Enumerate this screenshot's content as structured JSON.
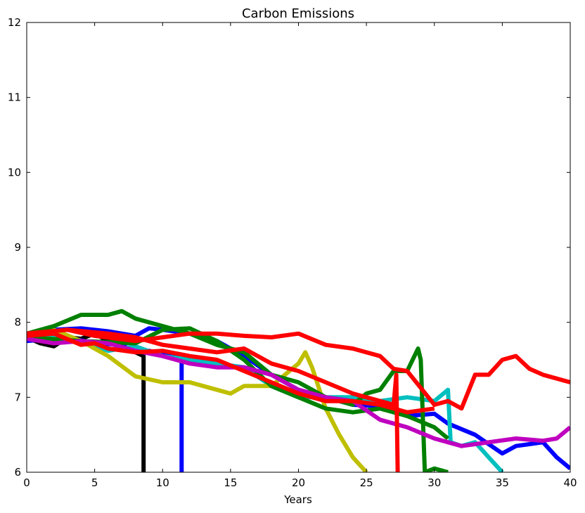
{
  "chart_data": {
    "type": "line",
    "title": "Carbon Emissions",
    "xlabel": "Years",
    "ylabel": "",
    "xlim": [
      0,
      40
    ],
    "ylim": [
      6,
      12
    ],
    "xticks": [
      "0",
      "5",
      "10",
      "15",
      "20",
      "25",
      "30",
      "35",
      "40"
    ],
    "yticks": [
      "6",
      "7",
      "8",
      "9",
      "10",
      "11",
      "12"
    ],
    "grid": false,
    "series": [
      {
        "color": "#000000",
        "x": [
          0,
          1,
          2,
          3,
          4,
          5,
          6,
          7,
          8,
          8.6,
          8.6
        ],
        "y": [
          7.8,
          7.72,
          7.68,
          7.8,
          7.78,
          7.85,
          7.75,
          7.7,
          7.6,
          7.55,
          6.0
        ]
      },
      {
        "color": "#0000ff",
        "x": [
          0,
          3,
          5,
          7,
          8,
          9,
          10,
          11,
          11.4,
          11.4
        ],
        "y": [
          7.75,
          7.8,
          7.72,
          7.7,
          7.6,
          7.62,
          7.58,
          7.55,
          7.5,
          6.0
        ]
      },
      {
        "color": "#0000ff",
        "x": [
          0,
          2,
          4,
          6,
          8,
          9,
          10,
          12,
          14,
          16,
          18,
          20,
          22,
          24,
          26,
          28,
          30,
          31,
          33,
          35,
          36,
          38,
          39,
          40
        ],
        "y": [
          7.8,
          7.9,
          7.92,
          7.88,
          7.82,
          7.92,
          7.9,
          7.85,
          7.75,
          7.55,
          7.3,
          7.1,
          7.0,
          6.9,
          6.88,
          6.75,
          6.78,
          6.65,
          6.5,
          6.25,
          6.35,
          6.4,
          6.2,
          6.05
        ]
      },
      {
        "color": "#00bfbf",
        "x": [
          0,
          3,
          6,
          8,
          10,
          12,
          14,
          16,
          18,
          20,
          22,
          24,
          26,
          28,
          30,
          31,
          31.2,
          32,
          33,
          34,
          35
        ],
        "y": [
          7.85,
          7.8,
          7.62,
          7.68,
          7.55,
          7.5,
          7.45,
          7.4,
          7.15,
          7.0,
          7.0,
          7.0,
          6.95,
          7.0,
          6.95,
          7.1,
          6.4,
          6.35,
          6.4,
          6.2,
          6.0
        ]
      },
      {
        "color": "#bfbf00",
        "x": [
          0,
          2,
          4,
          6,
          8,
          10,
          12,
          14,
          15,
          16,
          18,
          20,
          20.5,
          21,
          22,
          23,
          24,
          25
        ],
        "y": [
          7.85,
          7.9,
          7.75,
          7.55,
          7.28,
          7.2,
          7.2,
          7.1,
          7.05,
          7.15,
          7.15,
          7.45,
          7.6,
          7.4,
          6.85,
          6.5,
          6.2,
          6.0
        ]
      },
      {
        "color": "#008000",
        "x": [
          0,
          2,
          4,
          6,
          7,
          8,
          10,
          12,
          14,
          16,
          18,
          20,
          22,
          24,
          25,
          26,
          27,
          28,
          28.8,
          29,
          29.3,
          30,
          31
        ],
        "y": [
          7.85,
          7.95,
          8.1,
          8.1,
          8.15,
          8.05,
          7.95,
          7.85,
          7.7,
          7.6,
          7.3,
          7.2,
          7.0,
          6.9,
          7.05,
          7.1,
          7.35,
          7.35,
          7.65,
          7.5,
          6.0,
          6.05,
          6.0
        ]
      },
      {
        "color": "#008000",
        "x": [
          0,
          4,
          8,
          10,
          12,
          14,
          16,
          18,
          20,
          22,
          24,
          26,
          28,
          30,
          31
        ],
        "y": [
          7.8,
          7.75,
          7.72,
          7.9,
          7.92,
          7.75,
          7.5,
          7.15,
          7.0,
          6.85,
          6.8,
          6.85,
          6.75,
          6.6,
          6.45
        ]
      },
      {
        "color": "#bf00bf",
        "x": [
          0,
          2,
          4,
          6,
          8,
          10,
          12,
          14,
          16,
          18,
          20,
          22,
          24,
          26,
          28,
          30,
          32,
          34,
          36,
          38,
          39,
          40
        ],
        "y": [
          7.78,
          7.72,
          7.75,
          7.72,
          7.62,
          7.55,
          7.45,
          7.4,
          7.4,
          7.3,
          7.1,
          7.0,
          6.95,
          6.7,
          6.6,
          6.45,
          6.35,
          6.4,
          6.45,
          6.42,
          6.45,
          6.6
        ]
      },
      {
        "color": "#ff0000",
        "x": [
          0,
          3,
          6,
          8,
          10,
          12,
          14,
          16,
          18,
          20,
          22,
          24,
          26,
          27,
          27.2,
          27.3
        ],
        "y": [
          7.85,
          7.9,
          7.85,
          7.8,
          7.7,
          7.65,
          7.6,
          7.65,
          7.45,
          7.35,
          7.2,
          7.05,
          6.95,
          6.9,
          7.3,
          6.0
        ]
      },
      {
        "color": "#ff0000",
        "x": [
          0,
          3,
          5,
          8,
          10,
          12,
          14,
          16,
          18,
          20,
          22,
          24,
          26,
          27,
          28,
          30,
          31,
          32,
          33,
          34,
          35,
          36,
          37,
          38,
          40
        ],
        "y": [
          7.85,
          7.9,
          7.82,
          7.75,
          7.8,
          7.85,
          7.85,
          7.82,
          7.8,
          7.85,
          7.7,
          7.65,
          7.55,
          7.38,
          7.35,
          6.9,
          6.95,
          6.85,
          7.3,
          7.3,
          7.5,
          7.55,
          7.38,
          7.3,
          7.2
        ]
      },
      {
        "color": "#ff0000",
        "x": [
          0,
          2,
          4,
          5,
          6,
          8,
          10,
          12,
          14,
          16,
          18,
          20,
          22,
          24,
          26,
          28,
          30
        ],
        "y": [
          7.82,
          7.85,
          7.7,
          7.72,
          7.65,
          7.6,
          7.62,
          7.55,
          7.5,
          7.35,
          7.2,
          7.05,
          6.95,
          6.95,
          6.9,
          6.8,
          6.85
        ]
      }
    ]
  }
}
